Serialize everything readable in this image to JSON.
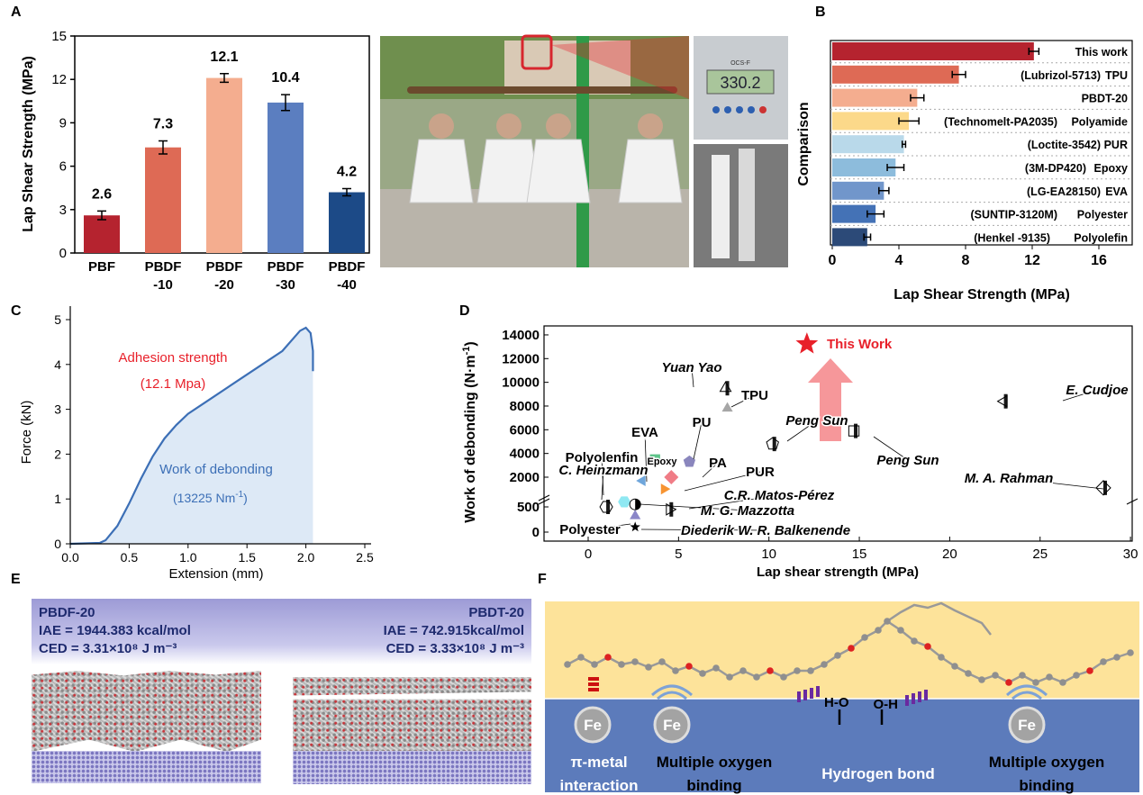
{
  "panel_labels": [
    "A",
    "B",
    "C",
    "D",
    "E",
    "F"
  ],
  "photo": {
    "scale_brand": "OCS-F",
    "scale_reading": "330.2"
  },
  "panel_e": {
    "left": {
      "name": "PBDF-20",
      "iae": "IAE = 1944.383 kcal/mol",
      "ced": "CED = 3.31×10⁸ J m⁻³"
    },
    "right": {
      "name": "PBDT-20",
      "iae": "IAE = 742.915kcal/mol",
      "ced": "CED = 3.33×10⁸ J m⁻³"
    }
  },
  "panel_f": {
    "fe": "Fe",
    "h_left": "H-O",
    "h_right": "O-H",
    "labels": [
      "π-metal",
      "interaction",
      "Multiple oxygen",
      "binding",
      "Hydrogen bond",
      "Multiple oxygen",
      "binding"
    ]
  },
  "colors": {
    "red": "#e8202a",
    "accent_blue": "#3c6fb6"
  },
  "chart_data": [
    {
      "id": "A",
      "type": "bar",
      "categories": [
        "PBF",
        "PBDF-10",
        "PBDF-20",
        "PBDF-30",
        "PBDF-40"
      ],
      "tick_lines": [
        [
          "PBF"
        ],
        [
          "PBDF",
          "-10"
        ],
        [
          "PBDF",
          "-20"
        ],
        [
          "PBDF",
          "-30"
        ],
        [
          "PBDF",
          "-40"
        ]
      ],
      "values": [
        2.6,
        7.3,
        12.1,
        10.4,
        4.2
      ],
      "value_labels": [
        "2.6",
        "7.3",
        "12.1",
        "10.4",
        "4.2"
      ],
      "errors": [
        0.3,
        0.45,
        0.3,
        0.55,
        0.25
      ],
      "colors": [
        "#b5232f",
        "#de6a55",
        "#f4ad8f",
        "#5b7ec0",
        "#1c4a87"
      ],
      "ylabel": "Lap Shear Strength (MPa)",
      "xlabel": "",
      "ylim": [
        0,
        15
      ],
      "yticks": [
        0,
        3,
        6,
        9,
        12,
        15
      ]
    },
    {
      "id": "B",
      "type": "bar",
      "orientation": "horizontal",
      "categories": [
        "This work",
        "TPU",
        "PBDT-20",
        "Polyamide",
        "PUR",
        "Epoxy",
        "EVA",
        "Polyester",
        "Polyolefin"
      ],
      "brands": [
        "",
        "(Lubrizol-5713)",
        "",
        "(Technomelt-PA2035)",
        "(Loctite-3542)",
        "(3M-DP420)",
        "(LG-EA28150)",
        "(SUNTIP-3120M)",
        "(Henkel -9135)"
      ],
      "values": [
        12.1,
        7.6,
        5.1,
        4.6,
        4.3,
        3.8,
        3.1,
        2.6,
        2.1
      ],
      "errors": [
        0.3,
        0.4,
        0.4,
        0.6,
        0.1,
        0.5,
        0.3,
        0.5,
        0.2
      ],
      "colors": [
        "#b5232f",
        "#de6a55",
        "#f4ad8f",
        "#fcd98a",
        "#b9d9ea",
        "#8dbcdc",
        "#7196cb",
        "#4472b6",
        "#2c4a78"
      ],
      "xlabel": "Lap Shear Strength (MPa)",
      "ylabel": "Comparison",
      "xlim": [
        0,
        18
      ],
      "xticks": [
        0,
        4,
        8,
        12,
        16
      ]
    },
    {
      "id": "C",
      "type": "area",
      "x": [
        0,
        0.25,
        0.3,
        0.4,
        0.5,
        0.6,
        0.7,
        0.8,
        0.9,
        1.0,
        1.2,
        1.4,
        1.6,
        1.8,
        1.95,
        2.0,
        2.04,
        2.06,
        2.06
      ],
      "y": [
        0,
        0.02,
        0.08,
        0.4,
        0.9,
        1.45,
        1.95,
        2.35,
        2.65,
        2.9,
        3.25,
        3.6,
        3.95,
        4.3,
        4.75,
        4.82,
        4.7,
        4.3,
        3.85
      ],
      "xlabel": "Extension (mm)",
      "ylabel": "Force (kN)",
      "xlim": [
        0,
        2.5
      ],
      "ylim": [
        0,
        5
      ],
      "xticks": [
        "0.0",
        "0.5",
        "1.0",
        "1.5",
        "2.0",
        "2.5"
      ],
      "yticks": [
        "0",
        "1",
        "2",
        "3",
        "4",
        "5"
      ],
      "annotations": [
        "Adhesion strength",
        "(12.1 Mpa)",
        "Work of debonding",
        "(13225 Nm",
        "-1",
        ")"
      ]
    },
    {
      "id": "D",
      "type": "scatter",
      "xlabel": "Lap shear strength (MPa)",
      "ylabel": "Work of debonding (N·m",
      "ylabel_sup": "-1",
      "ylabel_end": ")",
      "xlim": [
        -2.5,
        30
      ],
      "xticks": [
        "0",
        "5",
        "10",
        "15",
        "20",
        "25",
        "30"
      ],
      "yticks": [
        "0",
        "500",
        "2000",
        "4000",
        "6000",
        "8000",
        "10000",
        "12000",
        "14000"
      ],
      "y_axis_break": [
        700,
        1000
      ],
      "points": [
        {
          "label": "This Work",
          "x": 12.1,
          "y": 13225,
          "marker": "star",
          "color": "#e8202a"
        },
        {
          "label": "Yuan Yao",
          "x": 7.6,
          "y": 9500,
          "marker": "half-triangle",
          "color": "#000000"
        },
        {
          "label": "TPU",
          "x": 7.7,
          "y": 7800,
          "marker": "triangle",
          "color": "#a6a6a6"
        },
        {
          "label": "Peng Sun",
          "x": 10.2,
          "y": 4800,
          "marker": "half-pentagon",
          "color": "#000000"
        },
        {
          "label": "Peng Sun",
          "x": 14.7,
          "y": 5900,
          "marker": "half-square",
          "color": "#000000"
        },
        {
          "label": "E. Cudjoe",
          "x": 23.0,
          "y": 8400,
          "marker": "half-triangle-left",
          "color": "#000000"
        },
        {
          "label": "M. A. Rahman",
          "x": 28.5,
          "y": 1100,
          "marker": "half-diamond",
          "color": "#000000"
        },
        {
          "label": "Epoxy",
          "x": 3.7,
          "y": 3500,
          "marker": "square",
          "color": "#5fc48a"
        },
        {
          "label": "PU",
          "x": 5.6,
          "y": 3300,
          "marker": "pentagon",
          "color": "#8a86bd"
        },
        {
          "label": "PA",
          "x": 4.6,
          "y": 2000,
          "marker": "diamond",
          "color": "#f07c86"
        },
        {
          "label": "EVA",
          "x": 3.0,
          "y": 1700,
          "marker": "triangle-left",
          "color": "#6fa6db"
        },
        {
          "label": "PUR",
          "x": 4.2,
          "y": 1000,
          "marker": "triangle-right",
          "color": "#f79432"
        },
        {
          "label": "Polyolenfin",
          "x": 2.0,
          "y": 600,
          "marker": "hexagon",
          "color": "#8fe8f2"
        },
        {
          "label": "C. Heinzmann",
          "x": 1.0,
          "y": 500,
          "marker": "half-hexagon",
          "color": "#000000"
        },
        {
          "label": "M. G. Mazzotta",
          "x": 2.6,
          "y": 550,
          "marker": "half-circle",
          "color": "#000000"
        },
        {
          "label": "C.R. Matos-Pérez",
          "x": 4.5,
          "y": 450,
          "marker": "half-triangle-right",
          "color": "#000000"
        },
        {
          "label": "Polyester",
          "x": 2.6,
          "y": 320,
          "marker": "triangle",
          "color": "#8a86c8"
        },
        {
          "label": "Diederik W. R. Balkenende",
          "x": 2.6,
          "y": 100,
          "marker": "small-star",
          "color": "#000000"
        }
      ]
    }
  ]
}
